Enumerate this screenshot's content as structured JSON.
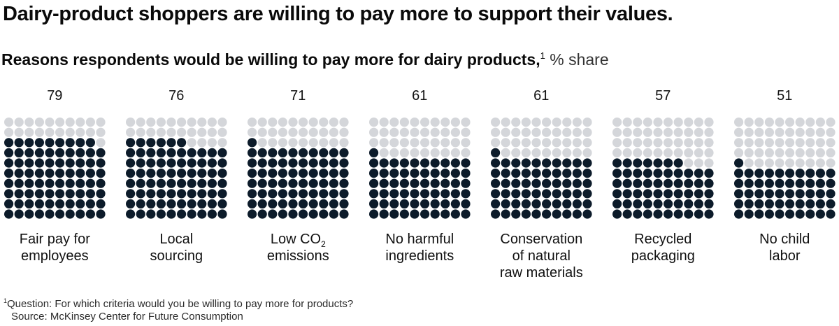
{
  "header": {
    "title": "Dairy-product shoppers are willing to pay more to support their values.",
    "subtitle": "Reasons respondents would be willing to pay more for dairy products,",
    "subtitle_note_marker": "1",
    "subtitle_unit": "% share"
  },
  "chart_data": {
    "type": "waffle",
    "title": "Reasons respondents would be willing to pay more for dairy products, % share",
    "grid": "10x10 dots per category, filled dots = % share",
    "categories": [
      "Fair pay for employees",
      "Local sourcing",
      "Low CO2 emissions",
      "No harmful ingredients",
      "Conservation of natural raw materials",
      "Recycled packaging",
      "No child labor"
    ],
    "values": [
      79,
      76,
      71,
      61,
      61,
      57,
      51
    ],
    "value_labels": [
      "79",
      "76",
      "71",
      "61",
      "61",
      "57",
      "51"
    ],
    "label_lines": [
      [
        "Fair pay for",
        "employees"
      ],
      [
        "Local",
        "sourcing"
      ],
      [
        "Low CO",
        "emissions"
      ],
      [
        "No harmful",
        "ingredients"
      ],
      [
        "Conservation",
        "of natural",
        "raw materials"
      ],
      [
        "Recycled",
        "packaging"
      ],
      [
        "No child",
        "labor"
      ]
    ],
    "co2_subscript": "2",
    "colors": {
      "filled": "#0c1b2a",
      "empty": "#d4d6da"
    }
  },
  "footer": {
    "note_marker": "1",
    "question": "Question: For which criteria would you be willing to pay more for products?",
    "source": "Source: McKinsey Center for Future Consumption"
  }
}
